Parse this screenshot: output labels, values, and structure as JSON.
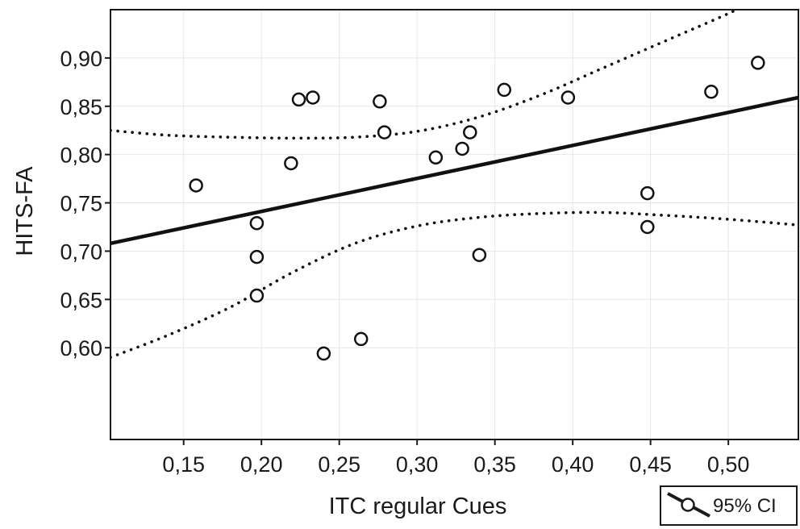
{
  "chart_data": {
    "type": "scatter",
    "title": "",
    "xlabel": "ITC regular Cues",
    "ylabel": "HITS-FA",
    "xlim": [
      0.103,
      0.545
    ],
    "ylim": [
      0.505,
      0.95
    ],
    "xticks": [
      0.15,
      0.2,
      0.25,
      0.3,
      0.35,
      0.4,
      0.45,
      0.5
    ],
    "xtick_labels": [
      "0,15",
      "0,20",
      "0,25",
      "0,30",
      "0,35",
      "0,40",
      "0,45",
      "0,50"
    ],
    "yticks": [
      0.6,
      0.65,
      0.7,
      0.75,
      0.8,
      0.85,
      0.9
    ],
    "ytick_labels": [
      "0,60",
      "0,65",
      "0,70",
      "0,75",
      "0,80",
      "0,85",
      "0,90"
    ],
    "grid": true,
    "points": [
      {
        "x": 0.158,
        "y": 0.768
      },
      {
        "x": 0.197,
        "y": 0.729
      },
      {
        "x": 0.197,
        "y": 0.694
      },
      {
        "x": 0.197,
        "y": 0.654
      },
      {
        "x": 0.219,
        "y": 0.791
      },
      {
        "x": 0.224,
        "y": 0.857
      },
      {
        "x": 0.233,
        "y": 0.859
      },
      {
        "x": 0.24,
        "y": 0.594
      },
      {
        "x": 0.264,
        "y": 0.609
      },
      {
        "x": 0.276,
        "y": 0.855
      },
      {
        "x": 0.279,
        "y": 0.823
      },
      {
        "x": 0.312,
        "y": 0.797
      },
      {
        "x": 0.329,
        "y": 0.806
      },
      {
        "x": 0.334,
        "y": 0.823
      },
      {
        "x": 0.34,
        "y": 0.696
      },
      {
        "x": 0.356,
        "y": 0.867
      },
      {
        "x": 0.397,
        "y": 0.859
      },
      {
        "x": 0.448,
        "y": 0.76
      },
      {
        "x": 0.448,
        "y": 0.725
      },
      {
        "x": 0.489,
        "y": 0.865
      },
      {
        "x": 0.519,
        "y": 0.895
      }
    ],
    "fit_line": {
      "x": [
        0.103,
        0.545
      ],
      "y": [
        0.708,
        0.859
      ]
    },
    "ci_upper": [
      [
        0.103,
        0.825
      ],
      [
        0.14,
        0.82
      ],
      [
        0.18,
        0.818
      ],
      [
        0.22,
        0.817
      ],
      [
        0.26,
        0.818
      ],
      [
        0.3,
        0.824
      ],
      [
        0.34,
        0.839
      ],
      [
        0.38,
        0.862
      ],
      [
        0.42,
        0.89
      ],
      [
        0.46,
        0.918
      ],
      [
        0.5,
        0.946
      ],
      [
        0.52,
        0.962
      ]
    ],
    "ci_lower": [
      [
        0.103,
        0.59
      ],
      [
        0.14,
        0.613
      ],
      [
        0.18,
        0.642
      ],
      [
        0.22,
        0.678
      ],
      [
        0.26,
        0.708
      ],
      [
        0.3,
        0.726
      ],
      [
        0.34,
        0.735
      ],
      [
        0.38,
        0.739
      ],
      [
        0.42,
        0.74
      ],
      [
        0.46,
        0.737
      ],
      [
        0.5,
        0.733
      ],
      [
        0.545,
        0.727
      ]
    ],
    "legend": {
      "label": "95% CI",
      "position": "bottom-right"
    }
  }
}
